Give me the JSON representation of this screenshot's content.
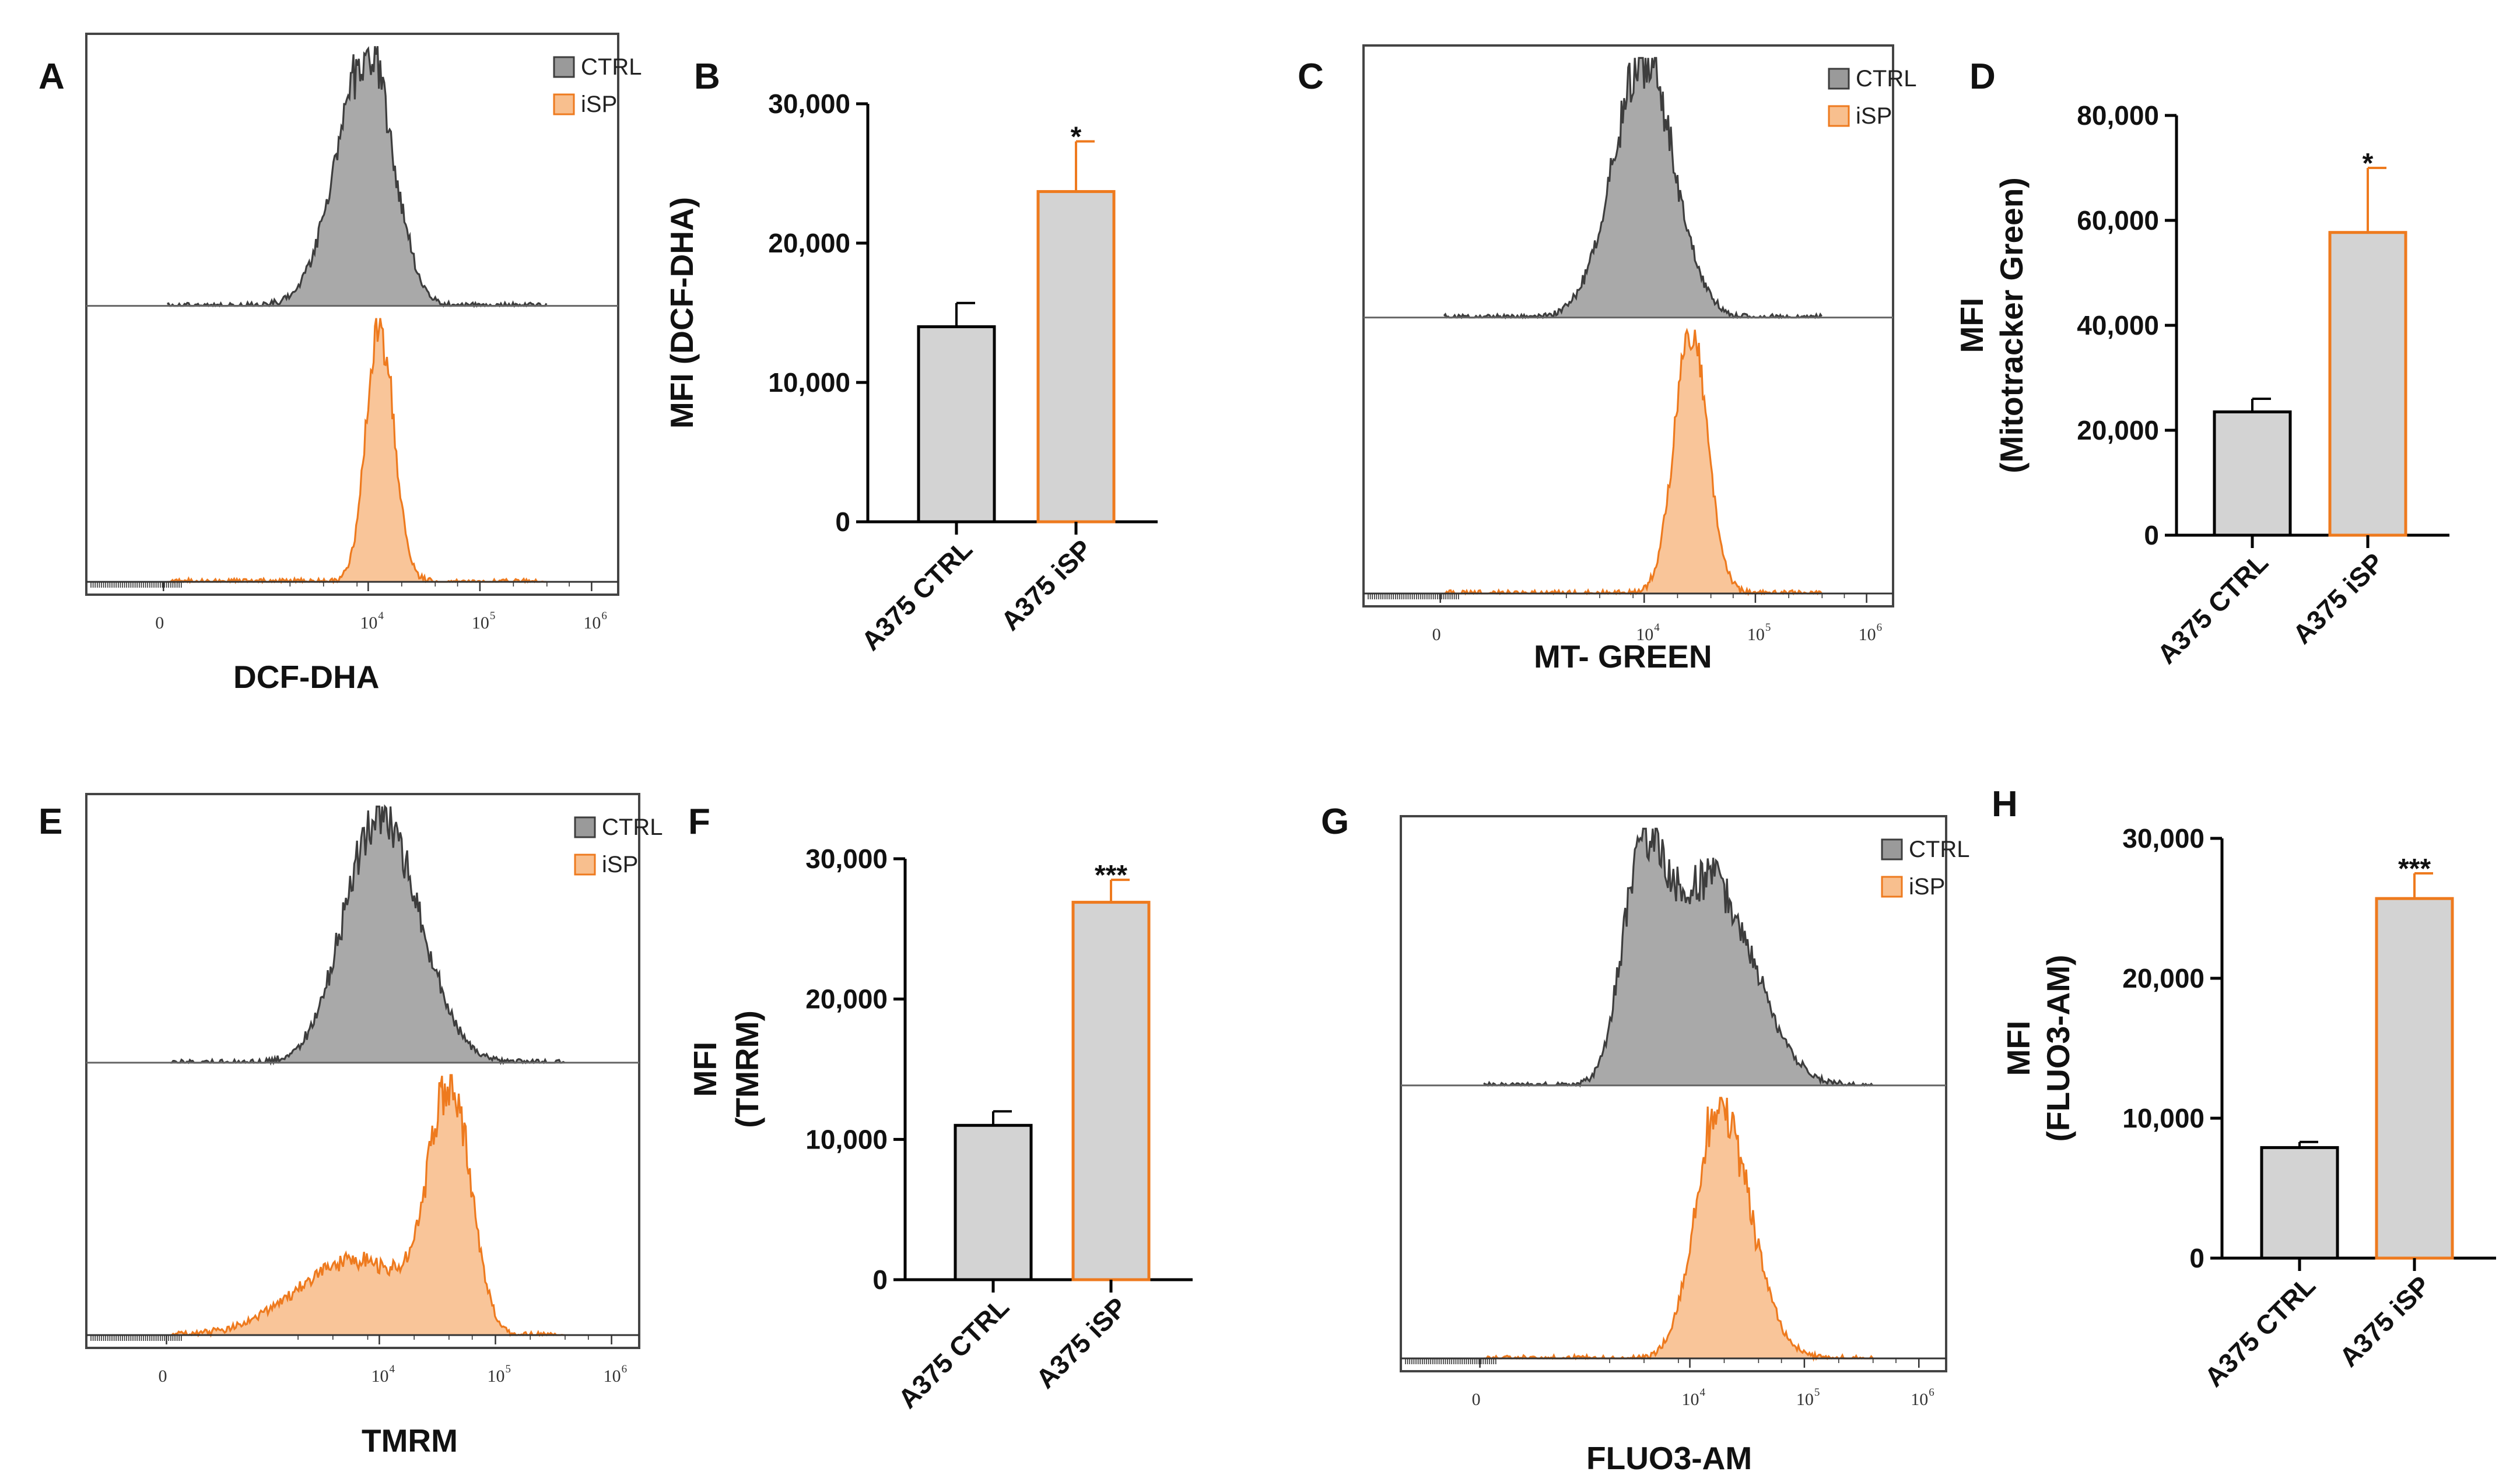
{
  "colors": {
    "ctrl_fill": "#9a9a9a",
    "ctrl_line": "#3d3d3d",
    "isp_fill": "#f8bf8e",
    "isp_line": "#ee7a1e",
    "bar_fill": "#d3d3d3",
    "bar_ctrl_edge": "#000000",
    "bar_isp_edge": "#ee7a1e"
  },
  "chart_data": [
    {
      "panel": "A",
      "type": "histogram",
      "xlabel": "DCF-DHA",
      "legend": [
        "CTRL",
        "iSP"
      ],
      "legend_position": "top-right",
      "tick_labels": [
        {
          "base": "0",
          "exp": ""
        },
        {
          "base": "10",
          "exp": "4"
        },
        {
          "base": "10",
          "exp": "5"
        },
        {
          "base": "10",
          "exp": "6"
        }
      ],
      "tick_values": [
        0,
        10000,
        100000,
        1000000
      ],
      "series": [
        {
          "name": "CTRL",
          "peaks": [
            {
              "log10": 4.0,
              "height": 1.0,
              "sd_left": 0.28,
              "sd_right": 0.22
            }
          ]
        },
        {
          "name": "iSP",
          "peaks": [
            {
              "log10": 4.1,
              "height": 1.0,
              "sd_left": 0.12,
              "sd_right": 0.13
            }
          ]
        }
      ]
    },
    {
      "panel": "B",
      "type": "bar",
      "ylabel": "MFI (DCF-DHA)",
      "categories": [
        "A375 CTRL",
        "A375 iSP"
      ],
      "values": [
        14000,
        23700
      ],
      "errors": [
        1700,
        3600
      ],
      "ylim": [
        0,
        30000
      ],
      "yticks": [
        0,
        10000,
        20000,
        30000
      ],
      "ytick_labels": [
        "0",
        "10,000",
        "20,000",
        "30,000"
      ],
      "significance": "*"
    },
    {
      "panel": "C",
      "type": "histogram",
      "xlabel": "MT- GREEN",
      "legend": [
        "CTRL",
        "iSP"
      ],
      "legend_position": "top-right",
      "tick_labels": [
        {
          "base": "0",
          "exp": ""
        },
        {
          "base": "10",
          "exp": "4"
        },
        {
          "base": "10",
          "exp": "5"
        },
        {
          "base": "10",
          "exp": "6"
        }
      ],
      "tick_values": [
        0,
        10000,
        100000,
        1000000
      ],
      "series": [
        {
          "name": "CTRL",
          "peaks": [
            {
              "log10": 4.0,
              "height": 1.0,
              "sd_left": 0.28,
              "sd_right": 0.27
            }
          ]
        },
        {
          "name": "iSP",
          "peaks": [
            {
              "log10": 4.42,
              "height": 1.0,
              "sd_left": 0.15,
              "sd_right": 0.15
            }
          ]
        }
      ]
    },
    {
      "panel": "D",
      "type": "bar",
      "ylabel": "MFI",
      "ylabel2": "(Mitotracker Green)",
      "categories": [
        "A375 CTRL",
        "A375 iSP"
      ],
      "values": [
        23500,
        57700
      ],
      "errors": [
        2500,
        12300
      ],
      "ylim": [
        0,
        80000
      ],
      "yticks": [
        0,
        20000,
        40000,
        60000,
        80000
      ],
      "ytick_labels": [
        "0",
        "20,000",
        "40,000",
        "60,000",
        "80,000"
      ],
      "significance": "*"
    },
    {
      "panel": "E",
      "type": "histogram",
      "xlabel": "TMRM",
      "legend": [
        "CTRL",
        "iSP"
      ],
      "legend_position": "top-right",
      "tick_labels": [
        {
          "base": "0",
          "exp": ""
        },
        {
          "base": "10",
          "exp": "4"
        },
        {
          "base": "10",
          "exp": "5"
        },
        {
          "base": "10",
          "exp": "6"
        }
      ],
      "tick_values": [
        0,
        10000,
        100000,
        1000000
      ],
      "series": [
        {
          "name": "CTRL",
          "peaks": [
            {
              "log10": 4.0,
              "height": 1.0,
              "sd_left": 0.3,
              "sd_right": 0.34
            }
          ]
        },
        {
          "name": "iSP",
          "peaks": [
            {
              "log10": 4.62,
              "height": 0.95,
              "sd_left": 0.2,
              "sd_right": 0.17
            },
            {
              "log10": 3.8,
              "height": 0.3,
              "sd_left": 0.5,
              "sd_right": 0.4
            }
          ]
        }
      ]
    },
    {
      "panel": "F",
      "type": "bar",
      "ylabel": "MFI",
      "ylabel2": "(TMRM)",
      "categories": [
        "A375 CTRL",
        "A375 iSP"
      ],
      "values": [
        11000,
        26900
      ],
      "errors": [
        1000,
        1600
      ],
      "ylim": [
        0,
        30000
      ],
      "yticks": [
        0,
        10000,
        20000,
        30000
      ],
      "ytick_labels": [
        "0",
        "10,000",
        "20,000",
        "30,000"
      ],
      "significance": "***"
    },
    {
      "panel": "G",
      "type": "histogram",
      "xlabel": "FLUO3-AM",
      "legend": [
        "CTRL",
        "iSP"
      ],
      "legend_position": "top-right",
      "tick_labels": [
        {
          "base": "0",
          "exp": ""
        },
        {
          "base": "10",
          "exp": "4"
        },
        {
          "base": "10",
          "exp": "5"
        },
        {
          "base": "10",
          "exp": "6"
        }
      ],
      "tick_values": [
        0,
        10000,
        100000,
        1000000
      ],
      "series": [
        {
          "name": "CTRL",
          "peaks": [
            {
              "log10": 3.6,
              "height": 1.0,
              "sd_left": 0.18,
              "sd_right": 0.32
            },
            {
              "log10": 4.25,
              "height": 0.7,
              "sd_left": 0.2,
              "sd_right": 0.35
            }
          ]
        },
        {
          "name": "iSP",
          "peaks": [
            {
              "log10": 4.25,
              "height": 1.0,
              "sd_left": 0.2,
              "sd_right": 0.27
            }
          ]
        }
      ]
    },
    {
      "panel": "H",
      "type": "bar",
      "ylabel": "MFI",
      "ylabel2": "(FLUO3-AM)",
      "categories": [
        "A375 CTRL",
        "A375 iSP"
      ],
      "values": [
        7900,
        25700
      ],
      "errors": [
        400,
        1800
      ],
      "ylim": [
        0,
        30000
      ],
      "yticks": [
        0,
        10000,
        20000,
        30000
      ],
      "ytick_labels": [
        "0",
        "10,000",
        "20,000",
        "30,000"
      ],
      "significance": "***"
    }
  ]
}
